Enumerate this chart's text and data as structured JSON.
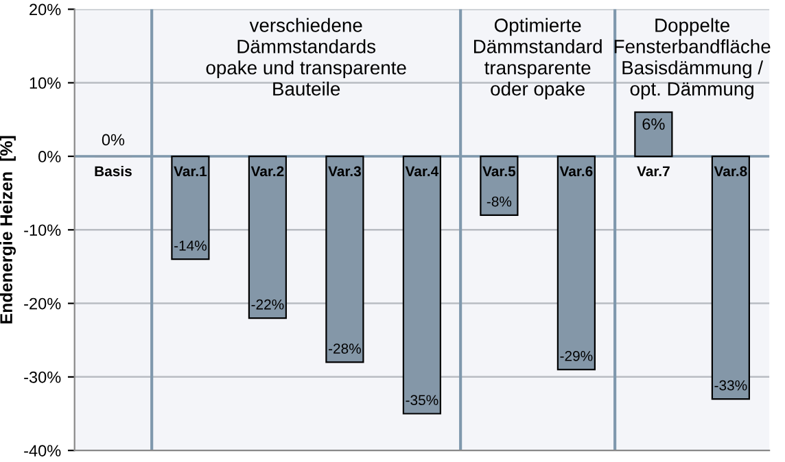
{
  "chart_data": {
    "type": "bar",
    "ylabel": "Endenergie Heizen  [%]",
    "categories": [
      "Basis",
      "Var.1",
      "Var.2",
      "Var.3",
      "Var.4",
      "Var.5",
      "Var.6",
      "Var.7",
      "Var.8"
    ],
    "values": [
      0,
      -14,
      -22,
      -28,
      -35,
      -8,
      -29,
      6,
      -33
    ],
    "value_labels": [
      "0%",
      "-14%",
      "-22%",
      "-28%",
      "-35%",
      "-8%",
      "-29%",
      "6%",
      "-33%"
    ],
    "color": "#8497a8",
    "ylim": [
      -40,
      20
    ],
    "yticks": [
      {
        "value": -40,
        "label": "-40%"
      },
      {
        "value": -30,
        "label": "-30%"
      },
      {
        "value": -20,
        "label": "-20%"
      },
      {
        "value": -10,
        "label": "-10%"
      },
      {
        "value": 0,
        "label": "0%"
      },
      {
        "value": 10,
        "label": "10%"
      },
      {
        "value": 20,
        "label": "20%"
      }
    ],
    "grid": "y",
    "annotations": [
      "verschiedene\nDämmstandards\nopake und transparente\nBauteile",
      "Optimierte\nDämmstandard\ntransparente\noder opake",
      "Doppelte\nFensterbandfläche\nBasisdämmung /\nopt. Dämmung"
    ]
  }
}
